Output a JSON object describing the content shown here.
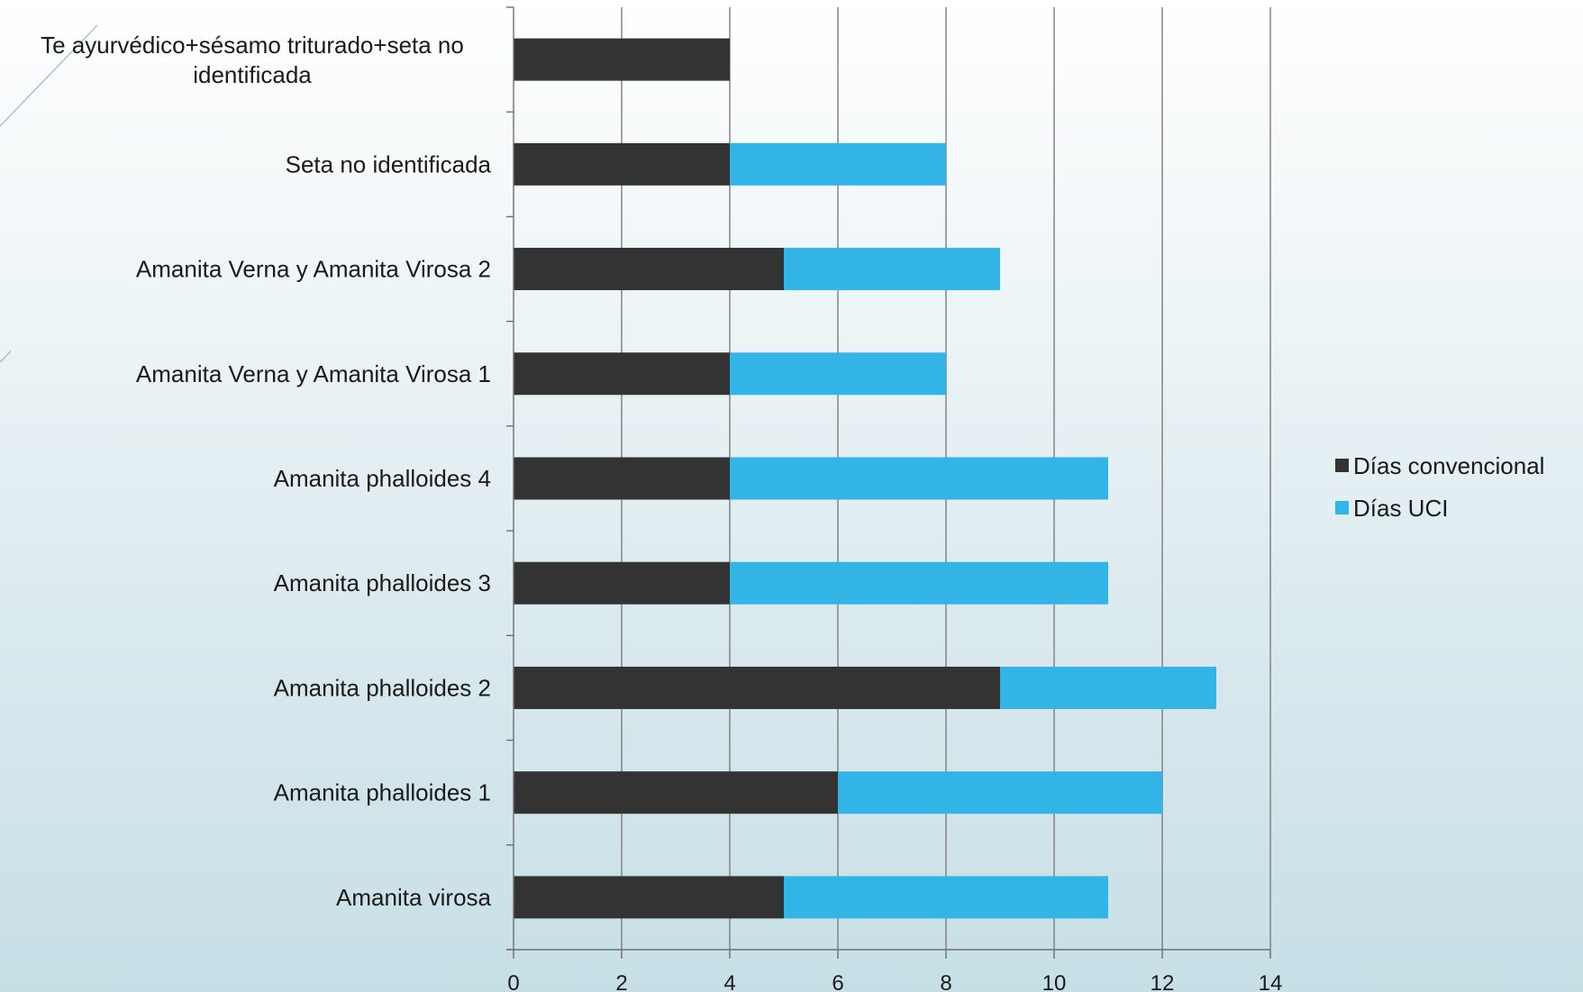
{
  "chart_data": {
    "type": "bar",
    "orientation": "horizontal",
    "stacked": true,
    "categories": [
      "Amanita virosa",
      "Amanita phalloides 1",
      "Amanita phalloides 2",
      "Amanita phalloides 3",
      "Amanita phalloides 4",
      "Amanita Verna y Amanita Virosa 1",
      "Amanita Verna y Amanita Virosa  2",
      "Seta no identificada",
      "Te ayurvédico+sésamo triturado+seta no identificada"
    ],
    "series": [
      {
        "name": "Días convencional",
        "color": "#333333",
        "values": [
          5,
          6,
          9,
          4,
          4,
          4,
          5,
          4,
          4
        ]
      },
      {
        "name": "Días UCI",
        "color": "#33b4e6",
        "values": [
          6,
          6,
          4,
          7,
          7,
          4,
          4,
          4,
          0
        ]
      }
    ],
    "xlim": [
      0,
      14
    ],
    "xticks": [
      "0",
      "2",
      "4",
      "6",
      "8",
      "10",
      "12",
      "14"
    ],
    "grid": true,
    "legend_position": "right",
    "title": "",
    "xlabel": "",
    "ylabel": ""
  }
}
